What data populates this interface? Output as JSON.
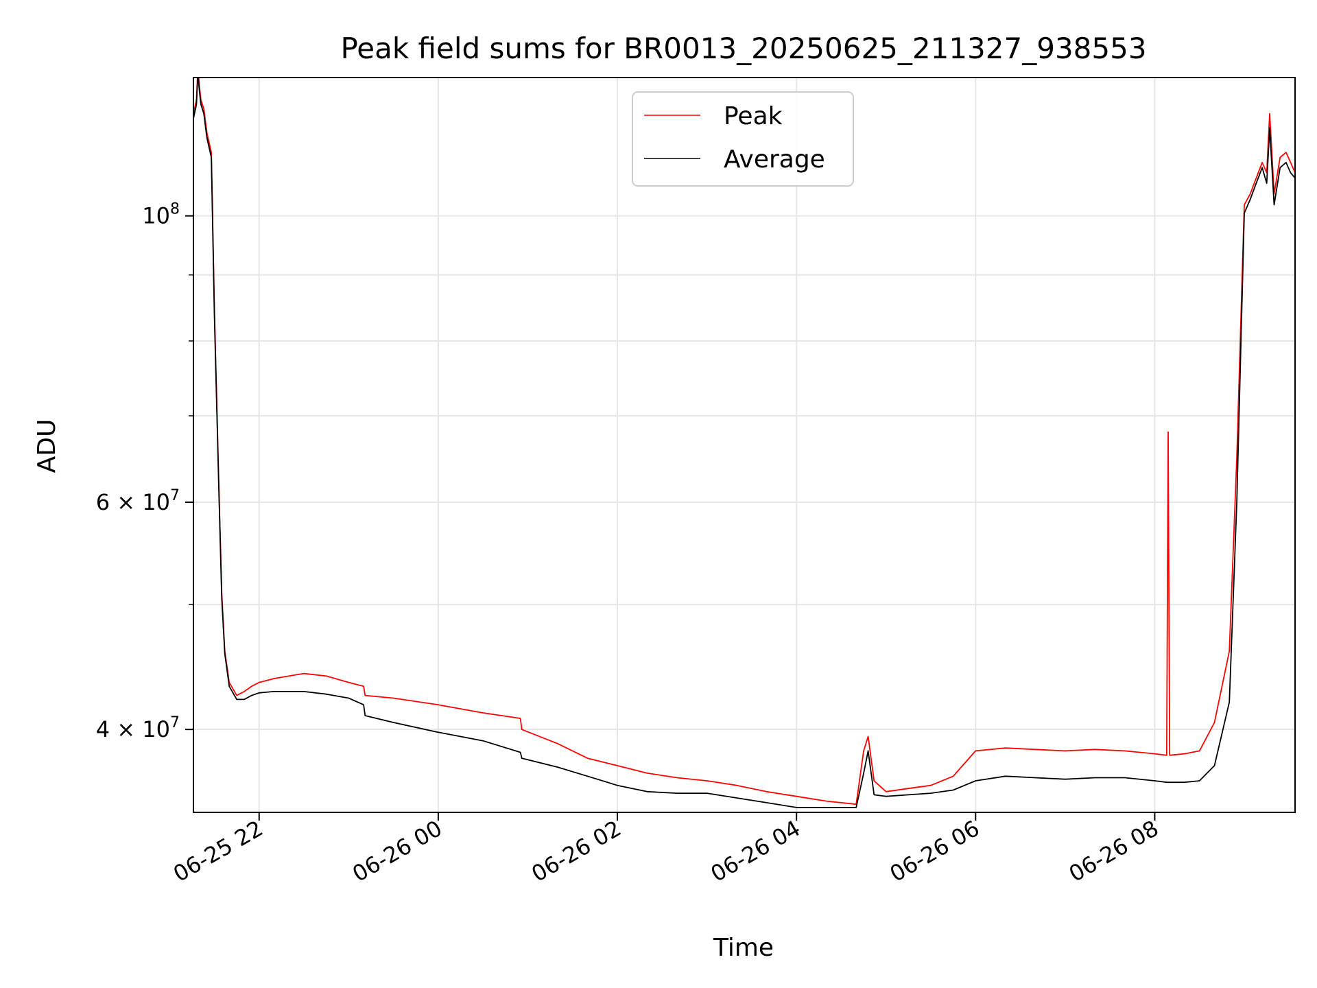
{
  "chart_data": {
    "type": "line",
    "title": "Peak field sums for BR0013_20250625_211327_938553",
    "xlabel": "Time",
    "ylabel": "ADU",
    "yscale": "log",
    "xlim": [
      "2025-06-25 21:16",
      "2025-06-26 09:34"
    ],
    "ylim": [
      34500000,
      128000000
    ],
    "grid": true,
    "legend_position": "upper center",
    "x_ticks": [
      {
        "value": "2025-06-25 22:00",
        "label": "06-25 22"
      },
      {
        "value": "2025-06-26 00:00",
        "label": "06-26 00"
      },
      {
        "value": "2025-06-26 02:00",
        "label": "06-26 02"
      },
      {
        "value": "2025-06-26 04:00",
        "label": "06-26 04"
      },
      {
        "value": "2025-06-26 06:00",
        "label": "06-26 06"
      },
      {
        "value": "2025-06-26 08:00",
        "label": "06-26 08"
      }
    ],
    "y_ticks": [
      {
        "value": 40000000,
        "mantissa": "4",
        "exponent": "7"
      },
      {
        "value": 60000000,
        "mantissa": "6",
        "exponent": "7"
      },
      {
        "value": 100000000,
        "mantissa": "",
        "exponent": "8"
      }
    ],
    "y_minor_ticks": [
      50000000,
      70000000,
      80000000,
      90000000
    ],
    "series": [
      {
        "name": "Peak",
        "color": "#ff0000",
        "x": [
          "2025-06-25 21:16",
          "2025-06-25 21:18",
          "2025-06-25 21:19",
          "2025-06-25 21:20",
          "2025-06-25 21:21",
          "2025-06-25 21:23",
          "2025-06-25 21:25",
          "2025-06-25 21:28",
          "2025-06-25 21:30",
          "2025-06-25 21:33",
          "2025-06-25 21:35",
          "2025-06-25 21:37",
          "2025-06-25 21:40",
          "2025-06-25 21:45",
          "2025-06-25 21:50",
          "2025-06-25 21:55",
          "2025-06-25 22:00",
          "2025-06-25 22:10",
          "2025-06-25 22:20",
          "2025-06-25 22:30",
          "2025-06-25 22:45",
          "2025-06-25 23:00",
          "2025-06-25 23:10",
          "2025-06-25 23:11",
          "2025-06-25 23:30",
          "2025-06-26 00:00",
          "2025-06-26 00:30",
          "2025-06-26 00:55",
          "2025-06-26 00:56",
          "2025-06-26 01:20",
          "2025-06-26 01:40",
          "2025-06-26 02:00",
          "2025-06-26 02:20",
          "2025-06-26 02:40",
          "2025-06-26 03:00",
          "2025-06-26 03:20",
          "2025-06-26 03:40",
          "2025-06-26 04:00",
          "2025-06-26 04:20",
          "2025-06-26 04:40",
          "2025-06-26 04:45",
          "2025-06-26 04:48",
          "2025-06-26 04:52",
          "2025-06-26 05:00",
          "2025-06-26 05:15",
          "2025-06-26 05:30",
          "2025-06-26 05:45",
          "2025-06-26 06:00",
          "2025-06-26 06:20",
          "2025-06-26 06:40",
          "2025-06-26 07:00",
          "2025-06-26 07:20",
          "2025-06-26 07:40",
          "2025-06-26 08:00",
          "2025-06-26 08:08",
          "2025-06-26 08:09",
          "2025-06-26 08:10",
          "2025-06-26 08:20",
          "2025-06-26 08:30",
          "2025-06-26 08:40",
          "2025-06-26 08:50",
          "2025-06-26 08:55",
          "2025-06-26 09:00",
          "2025-06-26 09:04",
          "2025-06-26 09:08",
          "2025-06-26 09:12",
          "2025-06-26 09:15",
          "2025-06-26 09:17",
          "2025-06-26 09:20",
          "2025-06-26 09:24",
          "2025-06-26 09:28",
          "2025-06-26 09:31",
          "2025-06-26 09:34"
        ],
        "y": [
          120000000,
          123000000,
          130000000,
          126000000,
          123000000,
          121000000,
          116000000,
          112000000,
          85000000,
          62000000,
          51000000,
          46000000,
          43500000,
          42500000,
          42800000,
          43200000,
          43500000,
          43800000,
          44000000,
          44200000,
          44000000,
          43500000,
          43200000,
          42500000,
          42300000,
          41800000,
          41200000,
          40800000,
          40000000,
          39000000,
          38000000,
          37500000,
          37000000,
          36700000,
          36500000,
          36200000,
          35800000,
          35500000,
          35200000,
          35000000,
          38500000,
          39500000,
          36500000,
          35800000,
          36000000,
          36200000,
          36800000,
          38500000,
          38700000,
          38600000,
          38500000,
          38600000,
          38500000,
          38300000,
          38200000,
          68000000,
          38200000,
          38300000,
          38500000,
          40500000,
          46000000,
          65000000,
          102000000,
          104000000,
          107000000,
          110000000,
          108000000,
          120000000,
          104000000,
          111000000,
          112000000,
          110000000,
          108000000
        ]
      },
      {
        "name": "Average",
        "color": "#000000",
        "x": [
          "2025-06-25 21:16",
          "2025-06-25 21:18",
          "2025-06-25 21:19",
          "2025-06-25 21:20",
          "2025-06-25 21:21",
          "2025-06-25 21:23",
          "2025-06-25 21:25",
          "2025-06-25 21:28",
          "2025-06-25 21:30",
          "2025-06-25 21:33",
          "2025-06-25 21:35",
          "2025-06-25 21:37",
          "2025-06-25 21:40",
          "2025-06-25 21:45",
          "2025-06-25 21:50",
          "2025-06-25 21:55",
          "2025-06-25 22:00",
          "2025-06-25 22:10",
          "2025-06-25 22:20",
          "2025-06-25 22:30",
          "2025-06-25 22:45",
          "2025-06-25 23:00",
          "2025-06-25 23:10",
          "2025-06-25 23:11",
          "2025-06-25 23:30",
          "2025-06-26 00:00",
          "2025-06-26 00:30",
          "2025-06-26 00:55",
          "2025-06-26 00:56",
          "2025-06-26 01:20",
          "2025-06-26 01:40",
          "2025-06-26 02:00",
          "2025-06-26 02:20",
          "2025-06-26 02:40",
          "2025-06-26 03:00",
          "2025-06-26 03:20",
          "2025-06-26 03:40",
          "2025-06-26 04:00",
          "2025-06-26 04:20",
          "2025-06-26 04:40",
          "2025-06-26 04:45",
          "2025-06-26 04:48",
          "2025-06-26 04:52",
          "2025-06-26 05:00",
          "2025-06-26 05:15",
          "2025-06-26 05:30",
          "2025-06-26 05:45",
          "2025-06-26 06:00",
          "2025-06-26 06:20",
          "2025-06-26 06:40",
          "2025-06-26 07:00",
          "2025-06-26 07:20",
          "2025-06-26 07:40",
          "2025-06-26 08:00",
          "2025-06-26 08:08",
          "2025-06-26 08:09",
          "2025-06-26 08:10",
          "2025-06-26 08:20",
          "2025-06-26 08:30",
          "2025-06-26 08:40",
          "2025-06-26 08:50",
          "2025-06-26 08:55",
          "2025-06-26 09:00",
          "2025-06-26 09:04",
          "2025-06-26 09:08",
          "2025-06-26 09:12",
          "2025-06-26 09:15",
          "2025-06-26 09:17",
          "2025-06-26 09:20",
          "2025-06-26 09:24",
          "2025-06-26 09:28",
          "2025-06-26 09:31",
          "2025-06-26 09:34"
        ],
        "y": [
          119000000,
          122000000,
          129000000,
          125000000,
          122000000,
          120000000,
          115000000,
          111000000,
          84000000,
          61500000,
          50500000,
          45800000,
          43200000,
          42200000,
          42200000,
          42500000,
          42700000,
          42800000,
          42800000,
          42800000,
          42600000,
          42300000,
          41800000,
          41000000,
          40500000,
          39800000,
          39200000,
          38400000,
          38000000,
          37400000,
          36800000,
          36200000,
          35800000,
          35700000,
          35700000,
          35400000,
          35100000,
          34800000,
          34800000,
          34800000,
          37000000,
          38500000,
          35600000,
          35500000,
          35600000,
          35700000,
          35900000,
          36500000,
          36800000,
          36700000,
          36600000,
          36700000,
          36700000,
          36500000,
          36400000,
          36400000,
          36400000,
          36400000,
          36500000,
          37500000,
          42000000,
          60000000,
          100500000,
          103000000,
          106000000,
          109000000,
          106000000,
          117000000,
          102000000,
          109000000,
          110000000,
          108000000,
          107000000
        ]
      }
    ]
  }
}
